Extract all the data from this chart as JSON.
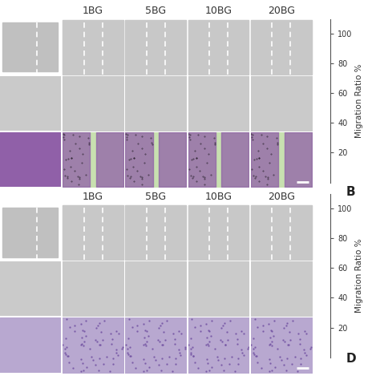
{
  "top_labels": [
    "1BG",
    "5BG",
    "10BG",
    "20BG"
  ],
  "right_axis_ticks_top": [
    20,
    40,
    60,
    80,
    100
  ],
  "right_axis_ticks_bottom": [
    20,
    40,
    60,
    80,
    100
  ],
  "right_axis_label": "Migration Ratio %",
  "panel_label_top": "B",
  "panel_label_bottom": "D",
  "bg_color": "#ffffff",
  "panel_bg_light": "#d8d8d8",
  "panel_bg_purple": "#c8a8d8",
  "panel_purple_green": "#b090c0",
  "scale_bar_color": "#ffffff",
  "dashed_line_color": "#ffffff",
  "text_color_labels": "#333333",
  "gap_color": "#e8e8e8",
  "num_cols": 5,
  "num_rows_section": 3,
  "col_header_fontsize": 9,
  "axis_label_fontsize": 7.5,
  "tick_fontsize": 7,
  "panel_letter_fontsize": 11
}
